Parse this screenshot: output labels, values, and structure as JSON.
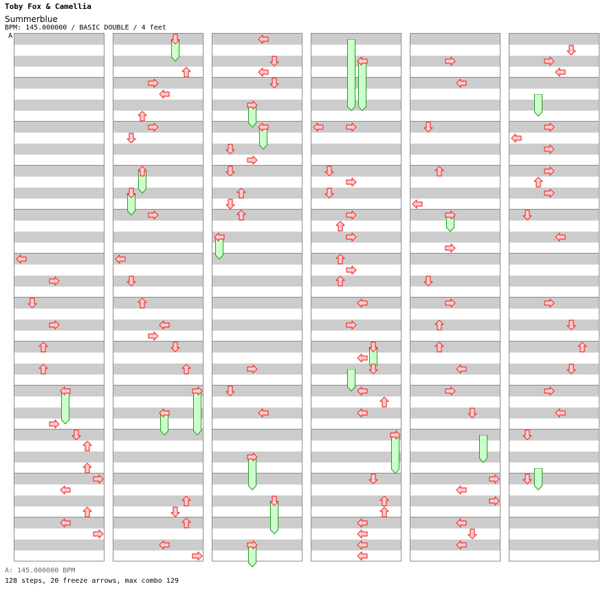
{
  "header": {
    "artist": "Toby Fox & Camellia",
    "title": "Summerblue",
    "info": "BPM: 145.000000 / BASIC DOUBLE / 4 feet",
    "bpm_marker": "A"
  },
  "footer": {
    "bpm_line": "A: 145.000000 BPM",
    "stats": "128 steps, 20 freeze arrows, max combo 129"
  },
  "colors": {
    "stripe": "#cccccc",
    "measure_line": "#8a8a8a",
    "arrow_fill": "#ffcccc",
    "arrow_stroke": "#ee3333",
    "freeze_fill": "#ccffcc",
    "freeze_stroke": "#229922",
    "marker_line": "#3b6fd1"
  },
  "chart": {
    "columns": 6,
    "measures_per_column": 12,
    "lanes": 8,
    "lane_directions": [
      "left",
      "down",
      "up",
      "right",
      "left",
      "down",
      "up",
      "right"
    ],
    "notes": [
      {
        "c": 0,
        "l": 0,
        "b": 20
      },
      {
        "c": 0,
        "l": 3,
        "b": 22
      },
      {
        "c": 0,
        "l": 1,
        "b": 24
      },
      {
        "c": 0,
        "l": 3,
        "b": 26
      },
      {
        "c": 0,
        "l": 2,
        "b": 28
      },
      {
        "c": 0,
        "l": 2,
        "b": 30
      },
      {
        "c": 0,
        "l": 4,
        "b": 32
      },
      {
        "c": 0,
        "l": 3,
        "b": 35
      },
      {
        "c": 0,
        "l": 5,
        "b": 36
      },
      {
        "c": 0,
        "l": 6,
        "b": 37
      },
      {
        "c": 0,
        "l": 6,
        "b": 39
      },
      {
        "c": 0,
        "l": 7,
        "b": 40
      },
      {
        "c": 0,
        "l": 4,
        "b": 41
      },
      {
        "c": 0,
        "l": 6,
        "b": 43
      },
      {
        "c": 0,
        "l": 4,
        "b": 44
      },
      {
        "c": 0,
        "l": 7,
        "b": 45
      },
      {
        "c": 1,
        "l": 5,
        "b": 0
      },
      {
        "c": 1,
        "l": 6,
        "b": 3
      },
      {
        "c": 1,
        "l": 3,
        "b": 4
      },
      {
        "c": 1,
        "l": 4,
        "b": 5
      },
      {
        "c": 1,
        "l": 2,
        "b": 7
      },
      {
        "c": 1,
        "l": 3,
        "b": 8
      },
      {
        "c": 1,
        "l": 1,
        "b": 9
      },
      {
        "c": 1,
        "l": 2,
        "b": 12
      },
      {
        "c": 1,
        "l": 1,
        "b": 14
      },
      {
        "c": 1,
        "l": 3,
        "b": 16
      },
      {
        "c": 1,
        "l": 0,
        "b": 20
      },
      {
        "c": 1,
        "l": 1,
        "b": 22
      },
      {
        "c": 1,
        "l": 2,
        "b": 24
      },
      {
        "c": 1,
        "l": 4,
        "b": 26
      },
      {
        "c": 1,
        "l": 3,
        "b": 27
      },
      {
        "c": 1,
        "l": 5,
        "b": 28
      },
      {
        "c": 1,
        "l": 6,
        "b": 30
      },
      {
        "c": 1,
        "l": 7,
        "b": 32
      },
      {
        "c": 1,
        "l": 4,
        "b": 34
      },
      {
        "c": 1,
        "l": 6,
        "b": 42
      },
      {
        "c": 1,
        "l": 5,
        "b": 43
      },
      {
        "c": 1,
        "l": 6,
        "b": 44
      },
      {
        "c": 1,
        "l": 4,
        "b": 46
      },
      {
        "c": 1,
        "l": 7,
        "b": 47
      },
      {
        "c": 2,
        "l": 4,
        "b": 0
      },
      {
        "c": 2,
        "l": 5,
        "b": 2
      },
      {
        "c": 2,
        "l": 4,
        "b": 3
      },
      {
        "c": 2,
        "l": 5,
        "b": 4
      },
      {
        "c": 2,
        "l": 3,
        "b": 6
      },
      {
        "c": 2,
        "l": 4,
        "b": 8
      },
      {
        "c": 2,
        "l": 1,
        "b": 10
      },
      {
        "c": 2,
        "l": 3,
        "b": 11
      },
      {
        "c": 2,
        "l": 1,
        "b": 12
      },
      {
        "c": 2,
        "l": 2,
        "b": 14
      },
      {
        "c": 2,
        "l": 1,
        "b": 15
      },
      {
        "c": 2,
        "l": 2,
        "b": 16
      },
      {
        "c": 2,
        "l": 0,
        "b": 18
      },
      {
        "c": 2,
        "l": 3,
        "b": 30
      },
      {
        "c": 2,
        "l": 1,
        "b": 32
      },
      {
        "c": 2,
        "l": 4,
        "b": 34
      },
      {
        "c": 2,
        "l": 3,
        "b": 38
      },
      {
        "c": 2,
        "l": 5,
        "b": 42
      },
      {
        "c": 2,
        "l": 3,
        "b": 46
      },
      {
        "c": 3,
        "l": 0,
        "b": 8
      },
      {
        "c": 3,
        "l": 3,
        "b": 8
      },
      {
        "c": 3,
        "l": 4,
        "b": 2
      },
      {
        "c": 3,
        "l": 1,
        "b": 12
      },
      {
        "c": 3,
        "l": 3,
        "b": 13
      },
      {
        "c": 3,
        "l": 1,
        "b": 14
      },
      {
        "c": 3,
        "l": 3,
        "b": 16
      },
      {
        "c": 3,
        "l": 2,
        "b": 17
      },
      {
        "c": 3,
        "l": 3,
        "b": 18
      },
      {
        "c": 3,
        "l": 2,
        "b": 20
      },
      {
        "c": 3,
        "l": 3,
        "b": 21
      },
      {
        "c": 3,
        "l": 2,
        "b": 22
      },
      {
        "c": 3,
        "l": 4,
        "b": 24
      },
      {
        "c": 3,
        "l": 3,
        "b": 26
      },
      {
        "c": 3,
        "l": 5,
        "b": 28
      },
      {
        "c": 3,
        "l": 4,
        "b": 29
      },
      {
        "c": 3,
        "l": 5,
        "b": 30
      },
      {
        "c": 3,
        "l": 4,
        "b": 32
      },
      {
        "c": 3,
        "l": 6,
        "b": 33
      },
      {
        "c": 3,
        "l": 4,
        "b": 34
      },
      {
        "c": 3,
        "l": 7,
        "b": 36
      },
      {
        "c": 3,
        "l": 5,
        "b": 40
      },
      {
        "c": 3,
        "l": 6,
        "b": 42
      },
      {
        "c": 3,
        "l": 6,
        "b": 43
      },
      {
        "c": 3,
        "l": 4,
        "b": 44
      },
      {
        "c": 3,
        "l": 4,
        "b": 45
      },
      {
        "c": 3,
        "l": 4,
        "b": 46
      },
      {
        "c": 3,
        "l": 4,
        "b": 47
      },
      {
        "c": 4,
        "l": 3,
        "b": 2
      },
      {
        "c": 4,
        "l": 4,
        "b": 4
      },
      {
        "c": 4,
        "l": 1,
        "b": 8
      },
      {
        "c": 4,
        "l": 2,
        "b": 12
      },
      {
        "c": 4,
        "l": 0,
        "b": 15
      },
      {
        "c": 4,
        "l": 3,
        "b": 16
      },
      {
        "c": 4,
        "l": 3,
        "b": 19
      },
      {
        "c": 4,
        "l": 1,
        "b": 22
      },
      {
        "c": 4,
        "l": 3,
        "b": 24
      },
      {
        "c": 4,
        "l": 2,
        "b": 26
      },
      {
        "c": 4,
        "l": 2,
        "b": 28
      },
      {
        "c": 4,
        "l": 4,
        "b": 30
      },
      {
        "c": 4,
        "l": 3,
        "b": 32
      },
      {
        "c": 4,
        "l": 5,
        "b": 34
      },
      {
        "c": 4,
        "l": 7,
        "b": 40
      },
      {
        "c": 4,
        "l": 4,
        "b": 41
      },
      {
        "c": 4,
        "l": 7,
        "b": 42
      },
      {
        "c": 4,
        "l": 4,
        "b": 44
      },
      {
        "c": 4,
        "l": 5,
        "b": 45
      },
      {
        "c": 4,
        "l": 4,
        "b": 46
      },
      {
        "c": 5,
        "l": 5,
        "b": 1
      },
      {
        "c": 5,
        "l": 3,
        "b": 2
      },
      {
        "c": 5,
        "l": 4,
        "b": 3
      },
      {
        "c": 5,
        "l": 3,
        "b": 8
      },
      {
        "c": 5,
        "l": 0,
        "b": 9
      },
      {
        "c": 5,
        "l": 3,
        "b": 10
      },
      {
        "c": 5,
        "l": 3,
        "b": 12
      },
      {
        "c": 5,
        "l": 2,
        "b": 13
      },
      {
        "c": 5,
        "l": 3,
        "b": 14
      },
      {
        "c": 5,
        "l": 1,
        "b": 16
      },
      {
        "c": 5,
        "l": 4,
        "b": 18
      },
      {
        "c": 5,
        "l": 3,
        "b": 24
      },
      {
        "c": 5,
        "l": 5,
        "b": 26
      },
      {
        "c": 5,
        "l": 6,
        "b": 28
      },
      {
        "c": 5,
        "l": 5,
        "b": 30
      },
      {
        "c": 5,
        "l": 3,
        "b": 32
      },
      {
        "c": 5,
        "l": 4,
        "b": 34
      },
      {
        "c": 5,
        "l": 1,
        "b": 36
      },
      {
        "c": 5,
        "l": 1,
        "b": 40
      }
    ],
    "freezes": [
      {
        "c": 0,
        "l": 4,
        "b0": 32,
        "b1": 35
      },
      {
        "c": 1,
        "l": 5,
        "b0": 0,
        "b1": 2
      },
      {
        "c": 1,
        "l": 2,
        "b0": 12,
        "b1": 14
      },
      {
        "c": 1,
        "l": 1,
        "b0": 14,
        "b1": 16
      },
      {
        "c": 1,
        "l": 4,
        "b0": 34,
        "b1": 36
      },
      {
        "c": 1,
        "l": 7,
        "b0": 32,
        "b1": 36
      },
      {
        "c": 2,
        "l": 3,
        "b0": 6,
        "b1": 8
      },
      {
        "c": 2,
        "l": 4,
        "b0": 8,
        "b1": 10
      },
      {
        "c": 2,
        "l": 0,
        "b0": 18,
        "b1": 20
      },
      {
        "c": 2,
        "l": 3,
        "b0": 38,
        "b1": 41
      },
      {
        "c": 2,
        "l": 5,
        "b0": 42,
        "b1": 45
      },
      {
        "c": 2,
        "l": 3,
        "b0": 46,
        "b1": 48
      },
      {
        "c": 3,
        "l": 3,
        "b0": 0,
        "b1": 6.5
      },
      {
        "c": 3,
        "l": 4,
        "b0": 2,
        "b1": 6.5
      },
      {
        "c": 3,
        "l": 5,
        "b0": 28,
        "b1": 30
      },
      {
        "c": 3,
        "l": 3,
        "b0": 30,
        "b1": 32
      },
      {
        "c": 3,
        "l": 7,
        "b0": 36,
        "b1": 39.5
      },
      {
        "c": 4,
        "l": 3,
        "b0": 16,
        "b1": 17.5
      },
      {
        "c": 4,
        "l": 6,
        "b0": 36,
        "b1": 38.5
      },
      {
        "c": 5,
        "l": 2,
        "b0": 5,
        "b1": 7
      },
      {
        "c": 5,
        "l": 2,
        "b0": 39,
        "b1": 41
      }
    ]
  }
}
